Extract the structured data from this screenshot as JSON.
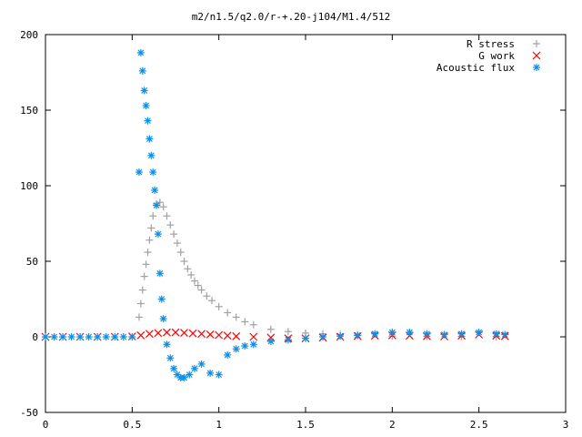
{
  "chart_data": {
    "type": "scatter",
    "title": "m2/n1.5/q2.0/r-+.20-j104/M1.4/512",
    "xlim": [
      0,
      3
    ],
    "ylim": [
      -50,
      200
    ],
    "xticks": [
      0,
      0.5,
      1,
      1.5,
      2,
      2.5,
      3
    ],
    "xtick_labels": [
      "0",
      "0.5",
      "1",
      "1.5",
      "2",
      "2.5",
      "3"
    ],
    "yticks": [
      -50,
      0,
      50,
      100,
      150,
      200
    ],
    "ytick_labels": [
      "-50",
      "0",
      "50",
      "100",
      "150",
      "200"
    ],
    "legend_position": "top-right",
    "series": [
      {
        "name": "R stress",
        "color": "#a0a0a0",
        "marker": "plus",
        "x": [
          0.54,
          0.55,
          0.56,
          0.57,
          0.58,
          0.59,
          0.6,
          0.61,
          0.62,
          0.64,
          0.66,
          0.68,
          0.7,
          0.72,
          0.74,
          0.76,
          0.78,
          0.8,
          0.82,
          0.84,
          0.86,
          0.88,
          0.9,
          0.93,
          0.96,
          1.0,
          1.05,
          1.1,
          1.15,
          1.2,
          1.3,
          1.4,
          1.5,
          1.6,
          1.7,
          1.8,
          2.0,
          2.2,
          2.4,
          2.6
        ],
        "y": [
          13,
          22,
          31,
          40,
          48,
          56,
          64,
          72,
          80,
          88,
          89,
          86,
          80,
          74,
          68,
          62,
          56,
          50,
          45,
          41,
          37,
          34,
          31,
          27,
          24,
          20,
          16,
          13,
          10,
          8,
          5,
          3.5,
          2.5,
          2,
          1.5,
          1,
          0.5,
          0.3,
          0.2,
          0.1
        ]
      },
      {
        "name": "G work",
        "color": "#ff0000",
        "marker": "cross",
        "x": [
          0,
          0.1,
          0.2,
          0.3,
          0.4,
          0.5,
          0.55,
          0.6,
          0.65,
          0.7,
          0.75,
          0.8,
          0.85,
          0.9,
          0.95,
          1.0,
          1.05,
          1.1,
          1.2,
          1.3,
          1.4,
          1.5,
          1.6,
          1.7,
          1.8,
          1.9,
          2.0,
          2.1,
          2.2,
          2.3,
          2.4,
          2.5,
          2.6,
          2.65
        ],
        "y": [
          0,
          0,
          0,
          0,
          0,
          0.3,
          1,
          2,
          2.5,
          3,
          3,
          2.7,
          2.3,
          2,
          1.6,
          1.2,
          0.8,
          0.4,
          0,
          -0.5,
          -1,
          -1,
          -0.5,
          0,
          0.5,
          0.8,
          1,
          0.8,
          0.5,
          0.3,
          0.8,
          1.5,
          0.8,
          0.5
        ]
      },
      {
        "name": "Acoustic flux",
        "color": "#0c8ee6",
        "marker": "star",
        "x": [
          0,
          0.05,
          0.1,
          0.15,
          0.2,
          0.25,
          0.3,
          0.35,
          0.4,
          0.45,
          0.5,
          0.54,
          0.55,
          0.56,
          0.57,
          0.58,
          0.59,
          0.6,
          0.61,
          0.62,
          0.63,
          0.64,
          0.65,
          0.66,
          0.67,
          0.68,
          0.7,
          0.72,
          0.74,
          0.76,
          0.78,
          0.8,
          0.83,
          0.86,
          0.9,
          0.95,
          1.0,
          1.05,
          1.1,
          1.15,
          1.2,
          1.3,
          1.4,
          1.5,
          1.6,
          1.7,
          1.8,
          1.9,
          2.0,
          2.1,
          2.2,
          2.3,
          2.4,
          2.5,
          2.6,
          2.65
        ],
        "y": [
          0,
          0,
          0,
          0,
          0,
          0,
          0,
          0,
          0,
          0,
          0,
          109,
          188,
          176,
          163,
          153,
          143,
          131,
          120,
          109,
          97,
          87,
          68,
          42,
          25,
          12,
          -5,
          -14,
          -21,
          -25,
          -27,
          -27,
          -25,
          -21,
          -18,
          -24,
          -25,
          -12,
          -8,
          -6,
          -5,
          -3,
          -2,
          -1,
          0,
          0.5,
          1,
          2,
          3,
          3,
          2,
          1.5,
          2,
          3,
          2,
          1.5
        ]
      }
    ]
  }
}
